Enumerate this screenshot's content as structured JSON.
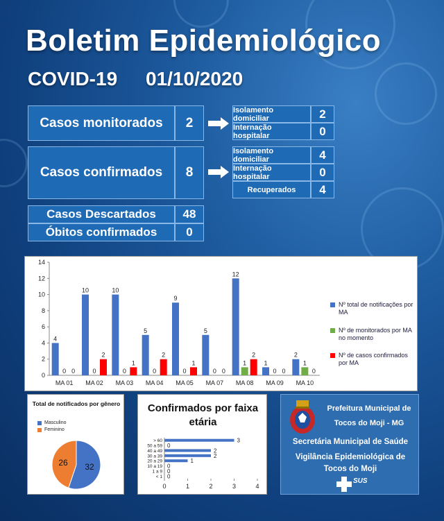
{
  "header": {
    "title": "Boletim Epidemiológico",
    "disease": "COVID-19",
    "date": "01/10/2020"
  },
  "monitored": {
    "label": "Casos monitorados",
    "value": "2",
    "details": [
      {
        "label": "Isolamento domiciliar",
        "value": "2"
      },
      {
        "label": "Internação hospitalar",
        "value": "0"
      }
    ]
  },
  "confirmed": {
    "label": "Casos confirmados",
    "value": "8",
    "details": [
      {
        "label": "Isolamento domiciliar",
        "value": "4"
      },
      {
        "label": "Internação hospitalar",
        "value": "0"
      },
      {
        "label": "Recuperados",
        "value": "4"
      }
    ]
  },
  "discarded": {
    "label": "Casos Descartados",
    "value": "48"
  },
  "deaths": {
    "label": "Óbitos confirmados",
    "value": "0"
  },
  "chart_data": [
    {
      "type": "bar",
      "categories": [
        "MA 01",
        "MA 02",
        "MA 03",
        "MA 04",
        "MA 05",
        "MA 07",
        "MA 08",
        "MA 09",
        "MA 10"
      ],
      "ylim": [
        0,
        14
      ],
      "yticks": [
        "0",
        "2",
        "4",
        "6",
        "8",
        "10",
        "12",
        "14"
      ],
      "series": [
        {
          "name": "Nº total de notificações por MA",
          "color": "#4472c4",
          "values": [
            4,
            10,
            10,
            5,
            9,
            5,
            12,
            1,
            2
          ]
        },
        {
          "name": "Nº de monitorados por MA no momento",
          "color": "#70ad47",
          "values": [
            0,
            0,
            0,
            0,
            0,
            0,
            1,
            0,
            1
          ]
        },
        {
          "name": "Nº de casos confirmados por MA",
          "color": "#ff0000",
          "values": [
            0,
            2,
            1,
            2,
            1,
            0,
            2,
            0,
            0
          ]
        }
      ]
    },
    {
      "type": "pie",
      "title": "Total de notificados por gênero",
      "labels": [
        "Masculino",
        "Feminino"
      ],
      "values": [
        32,
        26
      ],
      "colors": [
        "#4472c4",
        "#ed7d31"
      ]
    },
    {
      "type": "bar",
      "orientation": "horizontal",
      "title": "Confirmados por faixa etária",
      "categories": [
        "> 60",
        "50 a 59",
        "40 a 49",
        "30 a 39",
        "20 a 29",
        "10 a 19",
        "1 a 9",
        "< 1"
      ],
      "values": [
        3,
        0,
        2,
        2,
        1,
        0,
        0,
        0
      ],
      "xlim": [
        0,
        4
      ],
      "xticks": [
        "0",
        "1",
        "2",
        "3",
        "4"
      ],
      "color": "#4472c4"
    }
  ],
  "footer": {
    "line1": "Prefeitura Municipal de",
    "line2": "Tocos do Moji - MG",
    "line3": "Secretária Municipal de Saúde",
    "line4": "Vigilância Epidemiológica de",
    "line5": "Tocos do Moji",
    "sus": "SUS"
  }
}
